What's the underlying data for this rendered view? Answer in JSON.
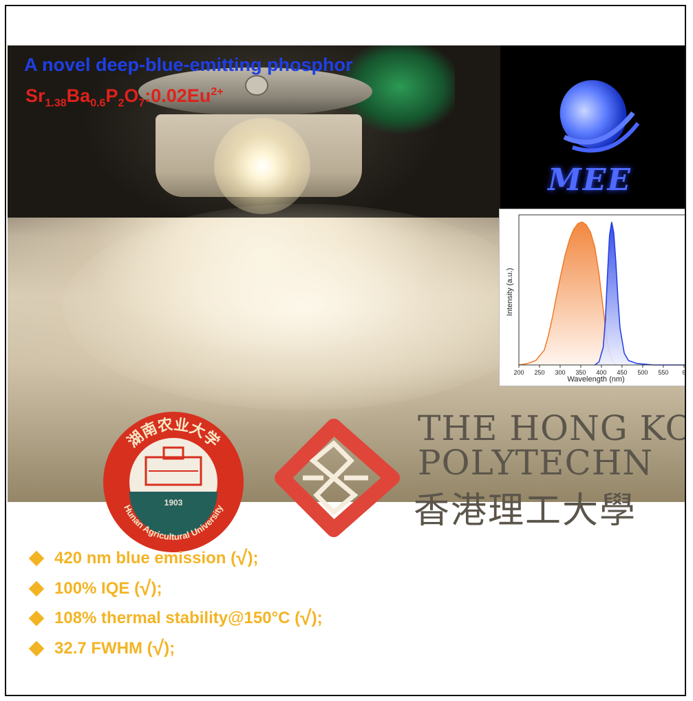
{
  "headline": "A novel deep-blue-emitting phosphor",
  "formula": {
    "sr": "Sr",
    "sr_sub": "1.38",
    "ba": "Ba",
    "ba_sub": "0.6",
    "p": "P",
    "p_sub": "2",
    "o": "O",
    "o_sub": "7",
    "dopant": ":0.02Eu",
    "charge": "2+"
  },
  "mee_logo": {
    "text": "MEE",
    "color": "#4f6bff"
  },
  "chart_data": {
    "type": "area",
    "title": "",
    "xlabel": "Wavelength (nm)",
    "ylabel": "Intensity (a.u.)",
    "xlim": [
      200,
      600
    ],
    "ylim": [
      0,
      1
    ],
    "xticks": [
      "200",
      "250",
      "300",
      "350",
      "400",
      "450",
      "500",
      "550",
      "6"
    ],
    "grid": false,
    "series": [
      {
        "color": "#f07a2a",
        "x": [
          200,
          220,
          240,
          260,
          270,
          280,
          290,
          300,
          310,
          320,
          330,
          340,
          350,
          360,
          370,
          380,
          390,
          400,
          410,
          420,
          430
        ],
        "y": [
          0.0,
          0.01,
          0.03,
          0.1,
          0.2,
          0.33,
          0.48,
          0.62,
          0.75,
          0.85,
          0.92,
          0.96,
          0.97,
          0.95,
          0.9,
          0.8,
          0.62,
          0.38,
          0.15,
          0.04,
          0.0
        ]
      },
      {
        "color": "#1f3be6",
        "x": [
          380,
          390,
          400,
          405,
          410,
          415,
          420,
          425,
          430,
          435,
          440,
          450,
          460,
          480,
          520,
          600
        ],
        "y": [
          0.0,
          0.02,
          0.12,
          0.3,
          0.6,
          0.88,
          0.97,
          0.9,
          0.7,
          0.45,
          0.25,
          0.08,
          0.03,
          0.01,
          0.0,
          0.0
        ]
      }
    ]
  },
  "hau_logo": {
    "text": "Hunan Agricultural University",
    "year": "1903",
    "chinese": "湖南农业大学",
    "color": "#d7301f"
  },
  "polyu": {
    "line1": "THE HONG KO",
    "line2": "POLYTECHN",
    "chinese": "香港理工大學"
  },
  "features": [
    {
      "text": "420 nm blue emission (",
      "check": "√",
      "close": ");"
    },
    {
      "text": "100% IQE (",
      "check": "√",
      "close": ");"
    },
    {
      "text": "108% thermal stability@150°C (",
      "check": "√",
      "close": ");"
    },
    {
      "text": "32.7 FWHM (",
      "check": "√",
      "close": ");"
    }
  ],
  "colors": {
    "headline": "#1e3fe6",
    "formula": "#e0211b",
    "feature": "#f3b424"
  }
}
